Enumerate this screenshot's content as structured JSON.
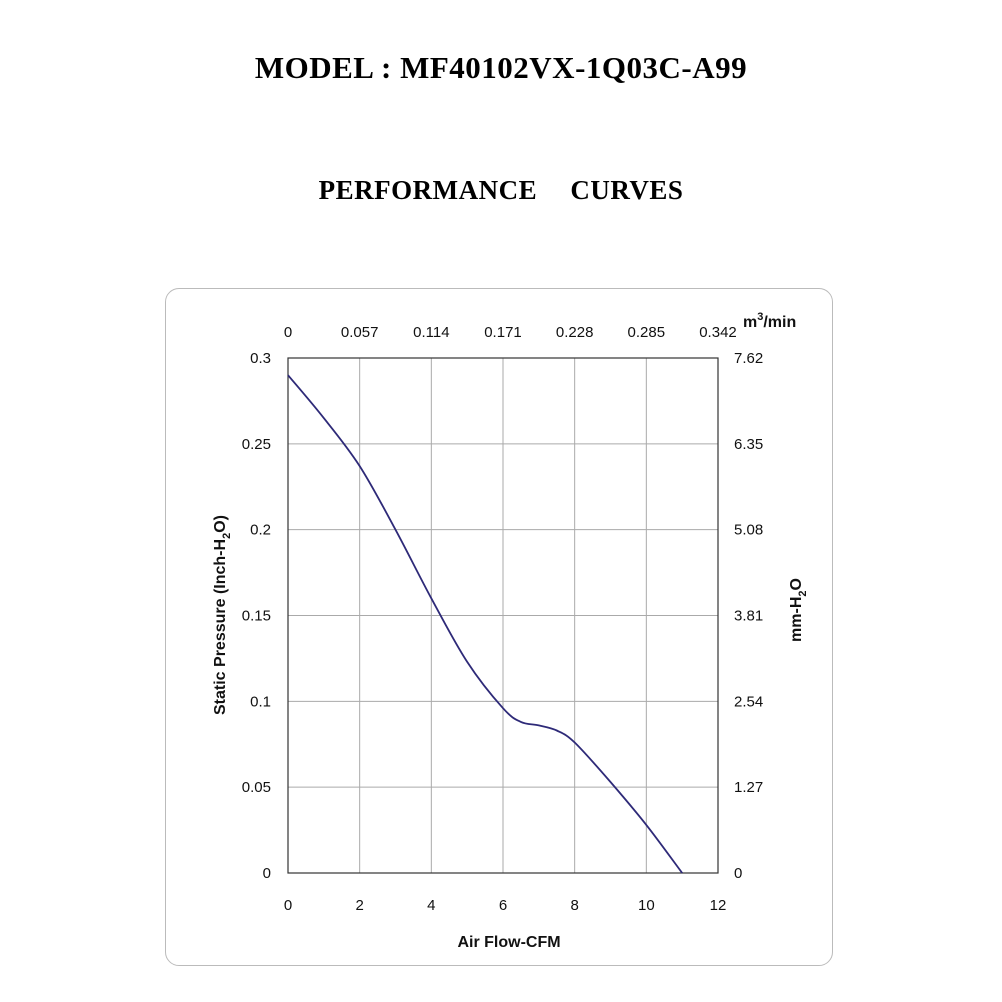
{
  "header": {
    "model": "MODEL : MF40102VX-1Q03C-A99",
    "subtitle": "PERFORMANCE    CURVES"
  },
  "chart_data": {
    "type": "line",
    "xlabel": "Air Flow-CFM",
    "ylabel": {
      "main": "Static Pressure (Inch-H",
      "sub": "2",
      "tail": "O)"
    },
    "y2label": {
      "main": "mm-H",
      "sub": "2",
      "tail": "O"
    },
    "x2unit": {
      "main": "m",
      "sup": "3",
      "tail": "/min"
    },
    "xlim": [
      0,
      12
    ],
    "ylim": [
      0,
      0.3
    ],
    "xticks": [
      "0",
      "2",
      "4",
      "6",
      "8",
      "10",
      "12"
    ],
    "yticks": [
      "0",
      "0.05",
      "0.1",
      "0.15",
      "0.2",
      "0.25",
      "0.3"
    ],
    "x2ticks": [
      "0",
      "0.057",
      "0.114",
      "0.171",
      "0.228",
      "0.285",
      "0.342"
    ],
    "y2ticks": [
      "0",
      "1.27",
      "2.54",
      "3.81",
      "5.08",
      "6.35",
      "7.62"
    ],
    "grid": true,
    "colors": {
      "curve": "#2e2a78",
      "grid": "#aaaaaa",
      "axis": "#333333"
    },
    "series": [
      {
        "points": [
          [
            0,
            0.29
          ],
          [
            1,
            0.265
          ],
          [
            2,
            0.237
          ],
          [
            3,
            0.2
          ],
          [
            4,
            0.16
          ],
          [
            5,
            0.123
          ],
          [
            6,
            0.096
          ],
          [
            6.5,
            0.088
          ],
          [
            7,
            0.086
          ],
          [
            7.5,
            0.083
          ],
          [
            8,
            0.076
          ],
          [
            9,
            0.053
          ],
          [
            10,
            0.028
          ],
          [
            11,
            0.0
          ]
        ]
      }
    ]
  }
}
